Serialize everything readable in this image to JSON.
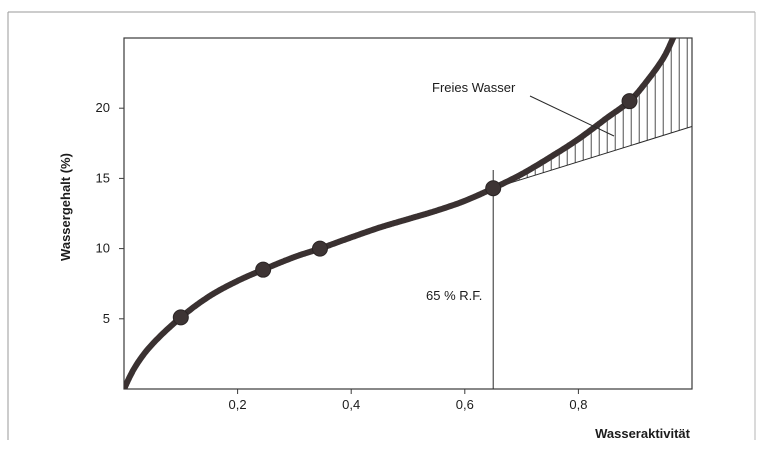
{
  "chart_data": {
    "type": "line",
    "title": "",
    "xlabel": "Wasseraktivität",
    "ylabel": "Wassergehalt (%)",
    "xlim": [
      0,
      1.0
    ],
    "ylim": [
      0,
      25
    ],
    "x_ticks": [
      0.2,
      0.4,
      0.6,
      0.8
    ],
    "x_tick_labels": [
      "0,2",
      "0,4",
      "0,6",
      "0,8"
    ],
    "y_ticks": [
      5,
      10,
      15,
      20
    ],
    "y_tick_labels": [
      "5",
      "10",
      "15",
      "20"
    ],
    "grid": false,
    "legend": "none",
    "series": [
      {
        "x": [
          0.0,
          0.02,
          0.05,
          0.1,
          0.15,
          0.2,
          0.245,
          0.3,
          0.345,
          0.4,
          0.45,
          0.5,
          0.55,
          0.6,
          0.65,
          0.7,
          0.75,
          0.8,
          0.85,
          0.89,
          0.92,
          0.95,
          0.97
        ],
        "y": [
          0.0,
          1.6,
          3.2,
          5.1,
          6.6,
          7.7,
          8.5,
          9.4,
          10.0,
          10.8,
          11.5,
          12.1,
          12.7,
          13.4,
          14.3,
          15.3,
          16.5,
          17.8,
          19.3,
          20.5,
          21.9,
          23.6,
          25.3
        ],
        "color": "#3a3131"
      }
    ],
    "markers": {
      "x": [
        0.1,
        0.245,
        0.345,
        0.65,
        0.89
      ],
      "y": [
        5.1,
        8.5,
        10.0,
        14.3,
        20.5
      ]
    },
    "tangent": {
      "x": [
        0.65,
        1.0
      ],
      "y": [
        14.3,
        18.7
      ]
    },
    "vertical_line": {
      "x": 0.65,
      "label": "65 % R.F."
    },
    "annotation": {
      "text": "Freies Wasser"
    }
  }
}
